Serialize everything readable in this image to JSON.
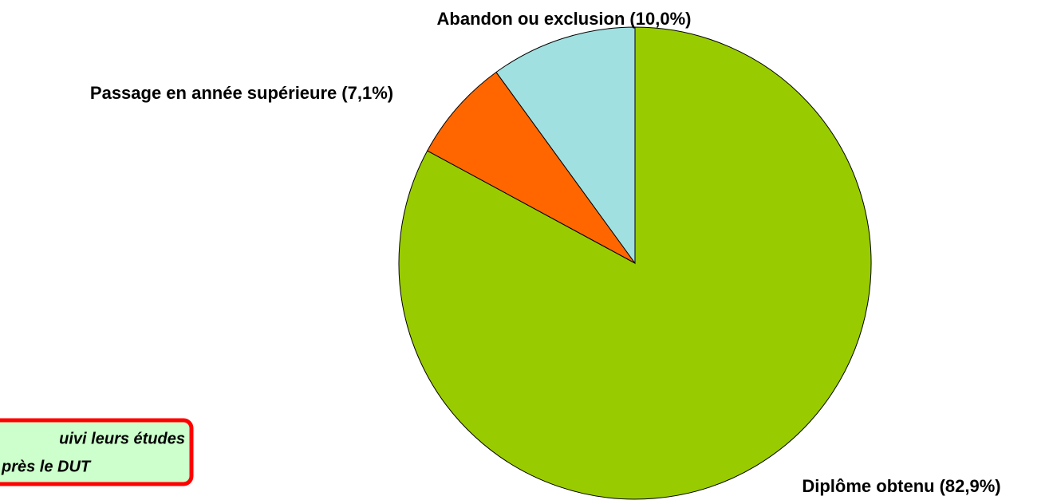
{
  "chart_data": {
    "type": "pie",
    "categories": [
      "Diplôme obtenu",
      "Passage en année supérieure",
      "Abandon ou exclusion"
    ],
    "values": [
      82.9,
      7.1,
      10.0
    ],
    "value_labels": [
      "(82,9%)",
      "(7,1%)",
      "(10,0%)"
    ],
    "colors": [
      "#99cc00",
      "#ff6600",
      "#a0e0e0"
    ],
    "annotation": [
      "uivi leurs études",
      "près le DUT"
    ]
  }
}
